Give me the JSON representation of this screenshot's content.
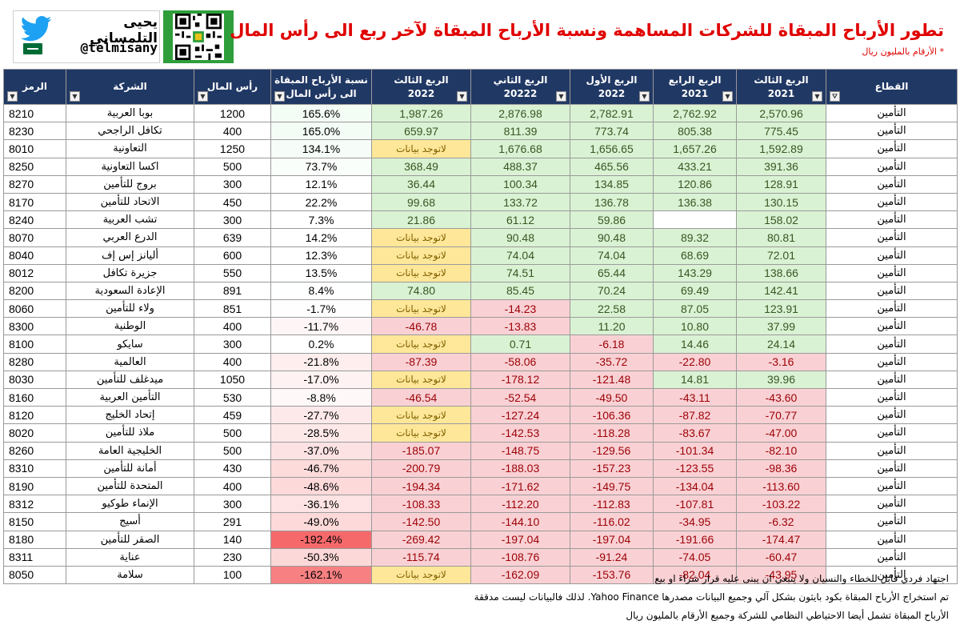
{
  "header": {
    "brand_name": "يحيى التلمساني",
    "brand_handle": "@telmisany",
    "title": "تطور الأرباح المبقاة للشركات المساهمة ونسبة الأرباح المبقاة لآخر ربع الى رأس المال",
    "subtitle": "* الأرقام بالمليون ريال",
    "colors": {
      "title": "#e00000",
      "header_bg": "#203864",
      "positive": "#d9f2d3",
      "negative": "#f9d1d4",
      "na": "#ffe799"
    }
  },
  "columns": [
    {
      "key": "code",
      "label": "الرمز"
    },
    {
      "key": "company",
      "label": "الشركة"
    },
    {
      "key": "capital",
      "label": "رأس المال"
    },
    {
      "key": "ratio",
      "label": "نسبة الأرباح المبقاة الى رأس المال"
    },
    {
      "key": "q3_2022",
      "label": "الربع الثالث 2022"
    },
    {
      "key": "q2_2022",
      "label": "الربع الثاني 20222"
    },
    {
      "key": "q1_2022",
      "label": "الربع الأول 2022"
    },
    {
      "key": "q4_2021",
      "label": "الربع الرابع 2021"
    },
    {
      "key": "q3_2021",
      "label": "الربع الثالث 2021"
    },
    {
      "key": "sector",
      "label": "القطاع"
    }
  ],
  "header_lines": {
    "code": [
      "الرمز"
    ],
    "company": [
      "الشركة"
    ],
    "capital": [
      "رأس المال"
    ],
    "ratio": [
      "نسبة الأرباح المبقاة",
      "الى رأس المال"
    ],
    "q3_2022": [
      "الربع الثالث",
      "2022"
    ],
    "q2_2022": [
      "الربع الثاني",
      "20222"
    ],
    "q1_2022": [
      "الربع الأول",
      "2022"
    ],
    "q4_2021": [
      "الربع الرابع",
      "2021"
    ],
    "q3_2021": [
      "الربع الثالث",
      "2021"
    ],
    "sector": [
      "القطاع"
    ]
  },
  "na_label": "لاتوجد بيانات",
  "rows": [
    {
      "code": "8210",
      "company": "بوبا العربية",
      "capital": "1200",
      "ratio": "165.6%",
      "q3_2022": "1,987.26",
      "q2_2022": "2,876.98",
      "q1_2022": "2,782.91",
      "q4_2021": "2,762.92",
      "q3_2021": "2,570.96",
      "sector": "التأمين"
    },
    {
      "code": "8230",
      "company": "تكافل الراجحي",
      "capital": "400",
      "ratio": "165.0%",
      "q3_2022": "659.97",
      "q2_2022": "811.39",
      "q1_2022": "773.74",
      "q4_2021": "805.38",
      "q3_2021": "775.45",
      "sector": "التأمين"
    },
    {
      "code": "8010",
      "company": "التعاونية",
      "capital": "1250",
      "ratio": "134.1%",
      "q3_2022": "لاتوجد بيانات",
      "q2_2022": "1,676.68",
      "q1_2022": "1,656.65",
      "q4_2021": "1,657.26",
      "q3_2021": "1,592.89",
      "sector": "التأمين"
    },
    {
      "code": "8250",
      "company": "اكسا التعاونية",
      "capital": "500",
      "ratio": "73.7%",
      "q3_2022": "368.49",
      "q2_2022": "488.37",
      "q1_2022": "465.56",
      "q4_2021": "433.21",
      "q3_2021": "391.36",
      "sector": "التأمين"
    },
    {
      "code": "8270",
      "company": "بروج للتأمين",
      "capital": "300",
      "ratio": "12.1%",
      "q3_2022": "36.44",
      "q2_2022": "100.34",
      "q1_2022": "134.85",
      "q4_2021": "120.86",
      "q3_2021": "128.91",
      "sector": "التأمين"
    },
    {
      "code": "8170",
      "company": "الاتحاد للتأمين",
      "capital": "450",
      "ratio": "22.2%",
      "q3_2022": "99.68",
      "q2_2022": "133.72",
      "q1_2022": "136.78",
      "q4_2021": "136.38",
      "q3_2021": "130.15",
      "sector": "التأمين"
    },
    {
      "code": "8240",
      "company": "تشب العربية",
      "capital": "300",
      "ratio": "7.3%",
      "q3_2022": "21.86",
      "q2_2022": "61.12",
      "q1_2022": "59.86",
      "q4_2021": "",
      "q3_2021": "158.02",
      "sector": "التأمين"
    },
    {
      "code": "8070",
      "company": "الدرع العربي",
      "capital": "639",
      "ratio": "14.2%",
      "q3_2022": "لاتوجد بيانات",
      "q2_2022": "90.48",
      "q1_2022": "90.48",
      "q4_2021": "89.32",
      "q3_2021": "80.81",
      "sector": "التأمين"
    },
    {
      "code": "8040",
      "company": "أليانز إس إف",
      "capital": "600",
      "ratio": "12.3%",
      "q3_2022": "لاتوجد بيانات",
      "q2_2022": "74.04",
      "q1_2022": "74.04",
      "q4_2021": "68.69",
      "q3_2021": "72.01",
      "sector": "التأمين"
    },
    {
      "code": "8012",
      "company": "جزيرة تكافل",
      "capital": "550",
      "ratio": "13.5%",
      "q3_2022": "لاتوجد بيانات",
      "q2_2022": "74.51",
      "q1_2022": "65.44",
      "q4_2021": "143.29",
      "q3_2021": "138.66",
      "sector": "التأمين"
    },
    {
      "code": "8200",
      "company": "الإعادة السعودية",
      "capital": "891",
      "ratio": "8.4%",
      "q3_2022": "74.80",
      "q2_2022": "85.45",
      "q1_2022": "70.24",
      "q4_2021": "69.49",
      "q3_2021": "142.41",
      "sector": "التأمين"
    },
    {
      "code": "8060",
      "company": "ولاء للتأمين",
      "capital": "851",
      "ratio": "-1.7%",
      "q3_2022": "لاتوجد بيانات",
      "q2_2022": "-14.23",
      "q1_2022": "22.58",
      "q4_2021": "87.05",
      "q3_2021": "123.91",
      "sector": "التأمين"
    },
    {
      "code": "8300",
      "company": "الوطنية",
      "capital": "400",
      "ratio": "-11.7%",
      "q3_2022": "-46.78",
      "q2_2022": "-13.83",
      "q1_2022": "11.20",
      "q4_2021": "10.80",
      "q3_2021": "37.99",
      "sector": "التأمين"
    },
    {
      "code": "8100",
      "company": "سايكو",
      "capital": "300",
      "ratio": "0.2%",
      "q3_2022": "لاتوجد بيانات",
      "q2_2022": "0.71",
      "q1_2022": "-6.18",
      "q4_2021": "14.46",
      "q3_2021": "24.14",
      "sector": "التأمين"
    },
    {
      "code": "8280",
      "company": "العالمية",
      "capital": "400",
      "ratio": "-21.8%",
      "q3_2022": "-87.39",
      "q2_2022": "-58.06",
      "q1_2022": "-35.72",
      "q4_2021": "-22.80",
      "q3_2021": "-3.16",
      "sector": "التأمين"
    },
    {
      "code": "8030",
      "company": "ميدغلف للتأمين",
      "capital": "1050",
      "ratio": "-17.0%",
      "q3_2022": "لاتوجد بيانات",
      "q2_2022": "-178.12",
      "q1_2022": "-121.48",
      "q4_2021": "14.81",
      "q3_2021": "39.96",
      "sector": "التأمين"
    },
    {
      "code": "8160",
      "company": "التأمين العربية",
      "capital": "530",
      "ratio": "-8.8%",
      "q3_2022": "-46.54",
      "q2_2022": "-52.54",
      "q1_2022": "-49.50",
      "q4_2021": "-43.11",
      "q3_2021": "-43.60",
      "sector": "التأمين"
    },
    {
      "code": "8120",
      "company": "إتحاد الخليج",
      "capital": "459",
      "ratio": "-27.7%",
      "q3_2022": "لاتوجد بيانات",
      "q2_2022": "-127.24",
      "q1_2022": "-106.36",
      "q4_2021": "-87.82",
      "q3_2021": "-70.77",
      "sector": "التأمين"
    },
    {
      "code": "8020",
      "company": "ملاذ للتأمين",
      "capital": "500",
      "ratio": "-28.5%",
      "q3_2022": "لاتوجد بيانات",
      "q2_2022": "-142.53",
      "q1_2022": "-118.28",
      "q4_2021": "-83.67",
      "q3_2021": "-47.00",
      "sector": "التأمين"
    },
    {
      "code": "8260",
      "company": "الخليجية العامة",
      "capital": "500",
      "ratio": "-37.0%",
      "q3_2022": "-185.07",
      "q2_2022": "-148.75",
      "q1_2022": "-129.56",
      "q4_2021": "-101.34",
      "q3_2021": "-82.10",
      "sector": "التأمين"
    },
    {
      "code": "8310",
      "company": "أمانة للتأمين",
      "capital": "430",
      "ratio": "-46.7%",
      "q3_2022": "-200.79",
      "q2_2022": "-188.03",
      "q1_2022": "-157.23",
      "q4_2021": "-123.55",
      "q3_2021": "-98.36",
      "sector": "التأمين"
    },
    {
      "code": "8190",
      "company": "المتحدة للتأمين",
      "capital": "400",
      "ratio": "-48.6%",
      "q3_2022": "-194.34",
      "q2_2022": "-171.62",
      "q1_2022": "-149.75",
      "q4_2021": "-134.04",
      "q3_2021": "-113.60",
      "sector": "التأمين"
    },
    {
      "code": "8312",
      "company": "الإنماء طوكيو",
      "capital": "300",
      "ratio": "-36.1%",
      "q3_2022": "-108.33",
      "q2_2022": "-112.20",
      "q1_2022": "-112.83",
      "q4_2021": "-107.81",
      "q3_2021": "-103.22",
      "sector": "التأمين"
    },
    {
      "code": "8150",
      "company": "أسيج",
      "capital": "291",
      "ratio": "-49.0%",
      "q3_2022": "-142.50",
      "q2_2022": "-144.10",
      "q1_2022": "-116.02",
      "q4_2021": "-34.95",
      "q3_2021": "-6.32",
      "sector": "التأمين"
    },
    {
      "code": "8180",
      "company": "الصقر للتأمين",
      "capital": "140",
      "ratio": "-192.4%",
      "q3_2022": "-269.42",
      "q2_2022": "-197.04",
      "q1_2022": "-197.04",
      "q4_2021": "-191.66",
      "q3_2021": "-174.47",
      "sector": "التأمين"
    },
    {
      "code": "8311",
      "company": "عناية",
      "capital": "230",
      "ratio": "-50.3%",
      "q3_2022": "-115.74",
      "q2_2022": "-108.76",
      "q1_2022": "-91.24",
      "q4_2021": "-74.05",
      "q3_2021": "-60.47",
      "sector": "التأمين"
    },
    {
      "code": "8050",
      "company": "سلامة",
      "capital": "100",
      "ratio": "-162.1%",
      "q3_2022": "لاتوجد بيانات",
      "q2_2022": "-162.09",
      "q1_2022": "-153.76",
      "q4_2021": "-82.04",
      "q3_2021": "-43.95",
      "sector": "التأمين"
    }
  ],
  "ratio_scale": {
    "min": -192.4,
    "max": 165.6
  },
  "footer": {
    "line1": "اجتهاد فردي قابل للخطاء والنسيان ولا ينبغي ان يبنى عليه قرار شراء او بيع",
    "line2": "تم استخراج الأرباح المبقاة بكود بايثون بشكل آلي وجميع البيانات مصدرها Yahoo Finance. لذلك فالبيانات ليست مدققة",
    "line3": "الأرباح المبقاة تشمل أيضا الاحتياطي النظامي للشركة وجميع الأرقام بالمليون ريال"
  }
}
